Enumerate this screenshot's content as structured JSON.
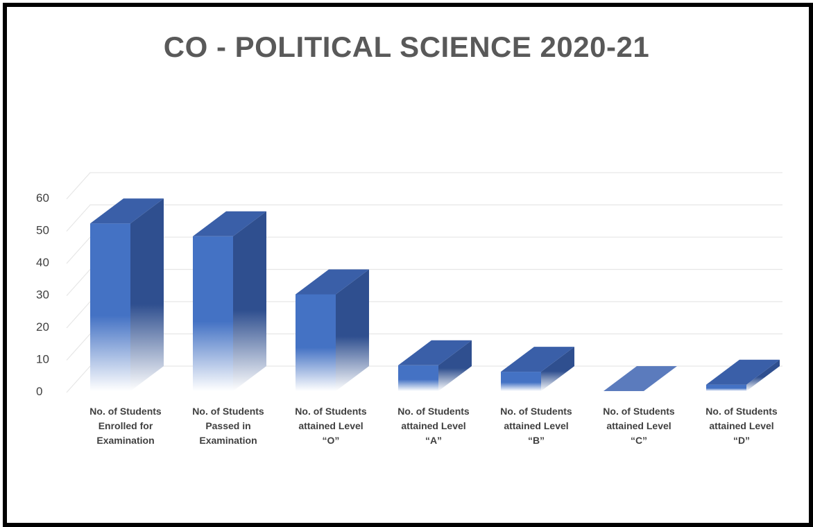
{
  "chart_data": {
    "type": "bar",
    "style": "3d-column",
    "title": "CO - POLITICAL SCIENCE 2020-21",
    "xlabel": "",
    "ylabel": "",
    "ylim": [
      0,
      60
    ],
    "yticks": [
      0,
      10,
      20,
      30,
      40,
      50,
      60
    ],
    "grid": true,
    "legend": "none",
    "categories": [
      [
        "No. of Students",
        "Enrolled for",
        "Examination"
      ],
      [
        "No. of Students",
        "Passed in",
        "Examination"
      ],
      [
        "No. of Students",
        "attained Level",
        "“O”"
      ],
      [
        "No. of Students",
        "attained Level",
        "“A”"
      ],
      [
        "No. of Students",
        "attained Level",
        "“B”"
      ],
      [
        "No. of Students",
        "attained Level",
        "“C”"
      ],
      [
        "No. of Students",
        "attained Level",
        "“D”"
      ]
    ],
    "values": [
      52,
      48,
      30,
      8,
      6,
      0,
      2
    ],
    "colors": {
      "front": "#4472c4",
      "side": "#2f4f8f",
      "top": "#3a5fa8",
      "floor": "#5b7bbd",
      "grid": "#e6e6e6",
      "text": "#404040",
      "title": "#595959"
    }
  }
}
